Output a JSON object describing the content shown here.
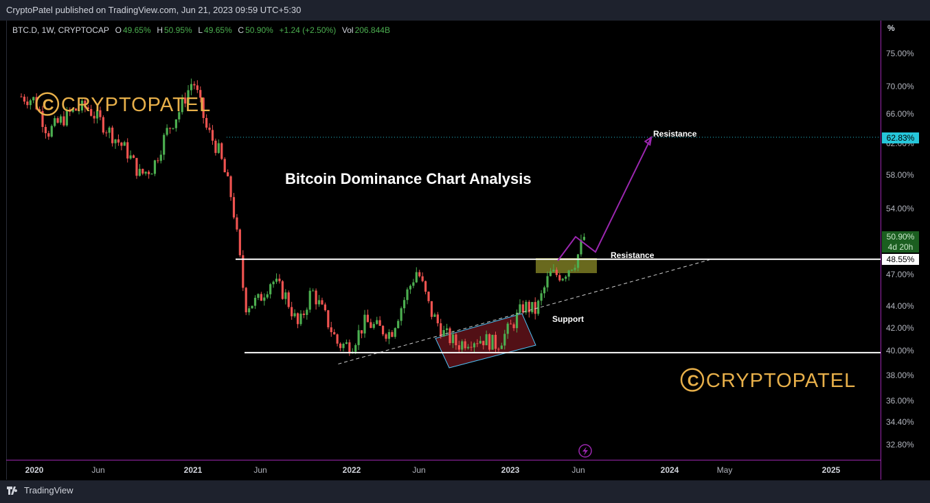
{
  "header": {
    "published_text": "CryptoPatel published on TradingView.com, Jun 21, 2023 09:59 UTC+5:30"
  },
  "legend": {
    "symbol": "BTC.D, 1W, CRYPTOCAP",
    "o_label": "O",
    "o_value": "49.65%",
    "h_label": "H",
    "h_value": "50.95%",
    "l_label": "L",
    "l_value": "49.65%",
    "c_label": "C",
    "c_value": "50.90%",
    "change": "+1.24 (+2.50%)",
    "vol_label": "Vol",
    "vol_value": "206.844B"
  },
  "axis": {
    "unit": "%",
    "y_ticks": [
      "75.00%",
      "70.00%",
      "66.00%",
      "62.00%",
      "58.00%",
      "54.00%",
      "47.00%",
      "44.00%",
      "42.00%",
      "40.00%",
      "38.00%",
      "36.00%",
      "34.40%",
      "32.80%"
    ],
    "x_ticks": [
      {
        "label": "2020",
        "bold": true
      },
      {
        "label": "Jun",
        "bold": false
      },
      {
        "label": "2021",
        "bold": true
      },
      {
        "label": "Jun",
        "bold": false
      },
      {
        "label": "2022",
        "bold": true
      },
      {
        "label": "Jun",
        "bold": false
      },
      {
        "label": "2023",
        "bold": true
      },
      {
        "label": "Jun",
        "bold": false
      },
      {
        "label": "2024",
        "bold": true
      },
      {
        "label": "May",
        "bold": false
      },
      {
        "label": "2025",
        "bold": true
      }
    ]
  },
  "price_tags": {
    "target": "62.83%",
    "current": "50.90%",
    "countdown": "4d 20h",
    "resistance": "48.55%"
  },
  "annotations": {
    "title": "Bitcoin Dominance Chart Analysis",
    "resistance_upper": "Resistance",
    "resistance_mid": "Resistance",
    "support": "Support",
    "watermark_top": "CRYPTOPATEL",
    "watermark_bottom": "CRYPTOPATEL"
  },
  "footer": {
    "brand": "TradingView"
  },
  "colors": {
    "up": "#26a69a",
    "up_green": "#4caf50",
    "down": "#ef5350",
    "purple": "#9c27b0",
    "gold": "#e8b04a",
    "tag_cyan": "#26c6da",
    "tag_green": "#1b5e20"
  },
  "chart_data": {
    "type": "line",
    "title": "Bitcoin Dominance Chart Analysis",
    "symbol": "BTC.D",
    "interval": "1W",
    "y_scale": "log",
    "ylim": [
      32.0,
      77.0
    ],
    "x_range": [
      "2019-12",
      "2025-03"
    ],
    "series": [
      {
        "values": [
          {
            "x": "2019-12-01",
            "y": 68.5
          },
          {
            "x": "2020-01-01",
            "y": 68.0
          },
          {
            "x": "2020-02-01",
            "y": 63.5
          },
          {
            "x": "2020-03-01",
            "y": 65.0
          },
          {
            "x": "2020-04-01",
            "y": 66.5
          },
          {
            "x": "2020-05-01",
            "y": 67.0
          },
          {
            "x": "2020-06-01",
            "y": 65.0
          },
          {
            "x": "2020-07-01",
            "y": 63.0
          },
          {
            "x": "2020-08-01",
            "y": 61.0
          },
          {
            "x": "2020-09-01",
            "y": 58.0
          },
          {
            "x": "2020-10-01",
            "y": 59.0
          },
          {
            "x": "2020-11-01",
            "y": 63.5
          },
          {
            "x": "2020-12-01",
            "y": 66.5
          },
          {
            "x": "2021-01-01",
            "y": 71.0
          },
          {
            "x": "2021-02-01",
            "y": 64.0
          },
          {
            "x": "2021-03-01",
            "y": 61.0
          },
          {
            "x": "2021-04-01",
            "y": 55.0
          },
          {
            "x": "2021-05-01",
            "y": 44.0
          },
          {
            "x": "2021-06-01",
            "y": 44.5
          },
          {
            "x": "2021-07-01",
            "y": 46.5
          },
          {
            "x": "2021-08-01",
            "y": 45.0
          },
          {
            "x": "2021-09-01",
            "y": 42.0
          },
          {
            "x": "2021-10-01",
            "y": 45.5
          },
          {
            "x": "2021-11-01",
            "y": 43.0
          },
          {
            "x": "2021-12-01",
            "y": 40.5
          },
          {
            "x": "2022-01-01",
            "y": 40.5
          },
          {
            "x": "2022-02-01",
            "y": 42.5
          },
          {
            "x": "2022-03-01",
            "y": 42.0
          },
          {
            "x": "2022-04-01",
            "y": 41.5
          },
          {
            "x": "2022-05-01",
            "y": 44.5
          },
          {
            "x": "2022-06-01",
            "y": 47.5
          },
          {
            "x": "2022-07-01",
            "y": 43.5
          },
          {
            "x": "2022-08-01",
            "y": 41.5
          },
          {
            "x": "2022-09-01",
            "y": 40.5
          },
          {
            "x": "2022-10-01",
            "y": 41.0
          },
          {
            "x": "2022-11-01",
            "y": 41.0
          },
          {
            "x": "2022-12-01",
            "y": 40.5
          },
          {
            "x": "2023-01-01",
            "y": 42.0
          },
          {
            "x": "2023-02-01",
            "y": 44.0
          },
          {
            "x": "2023-03-01",
            "y": 43.5
          },
          {
            "x": "2023-04-01",
            "y": 47.0
          },
          {
            "x": "2023-05-01",
            "y": 47.0
          },
          {
            "x": "2023-06-01",
            "y": 48.5
          },
          {
            "x": "2023-06-19",
            "y": 50.9
          }
        ]
      }
    ],
    "horizontal_lines": [
      {
        "label": "Resistance",
        "y": 48.55
      },
      {
        "label": "Support",
        "y": 39.85
      },
      {
        "label": "Resistance",
        "y": 62.83
      }
    ],
    "trendline": {
      "label": "Support",
      "from": {
        "x": "2021-12-01",
        "y": 38.9
      },
      "to": {
        "x": "2024-04-01",
        "y": 48.5
      }
    },
    "projection": [
      {
        "x": "2023-06-19",
        "y": 50.9
      },
      {
        "x": "2023-07-15",
        "y": 49.3
      },
      {
        "x": "2023-11-20",
        "y": 62.83
      }
    ]
  }
}
